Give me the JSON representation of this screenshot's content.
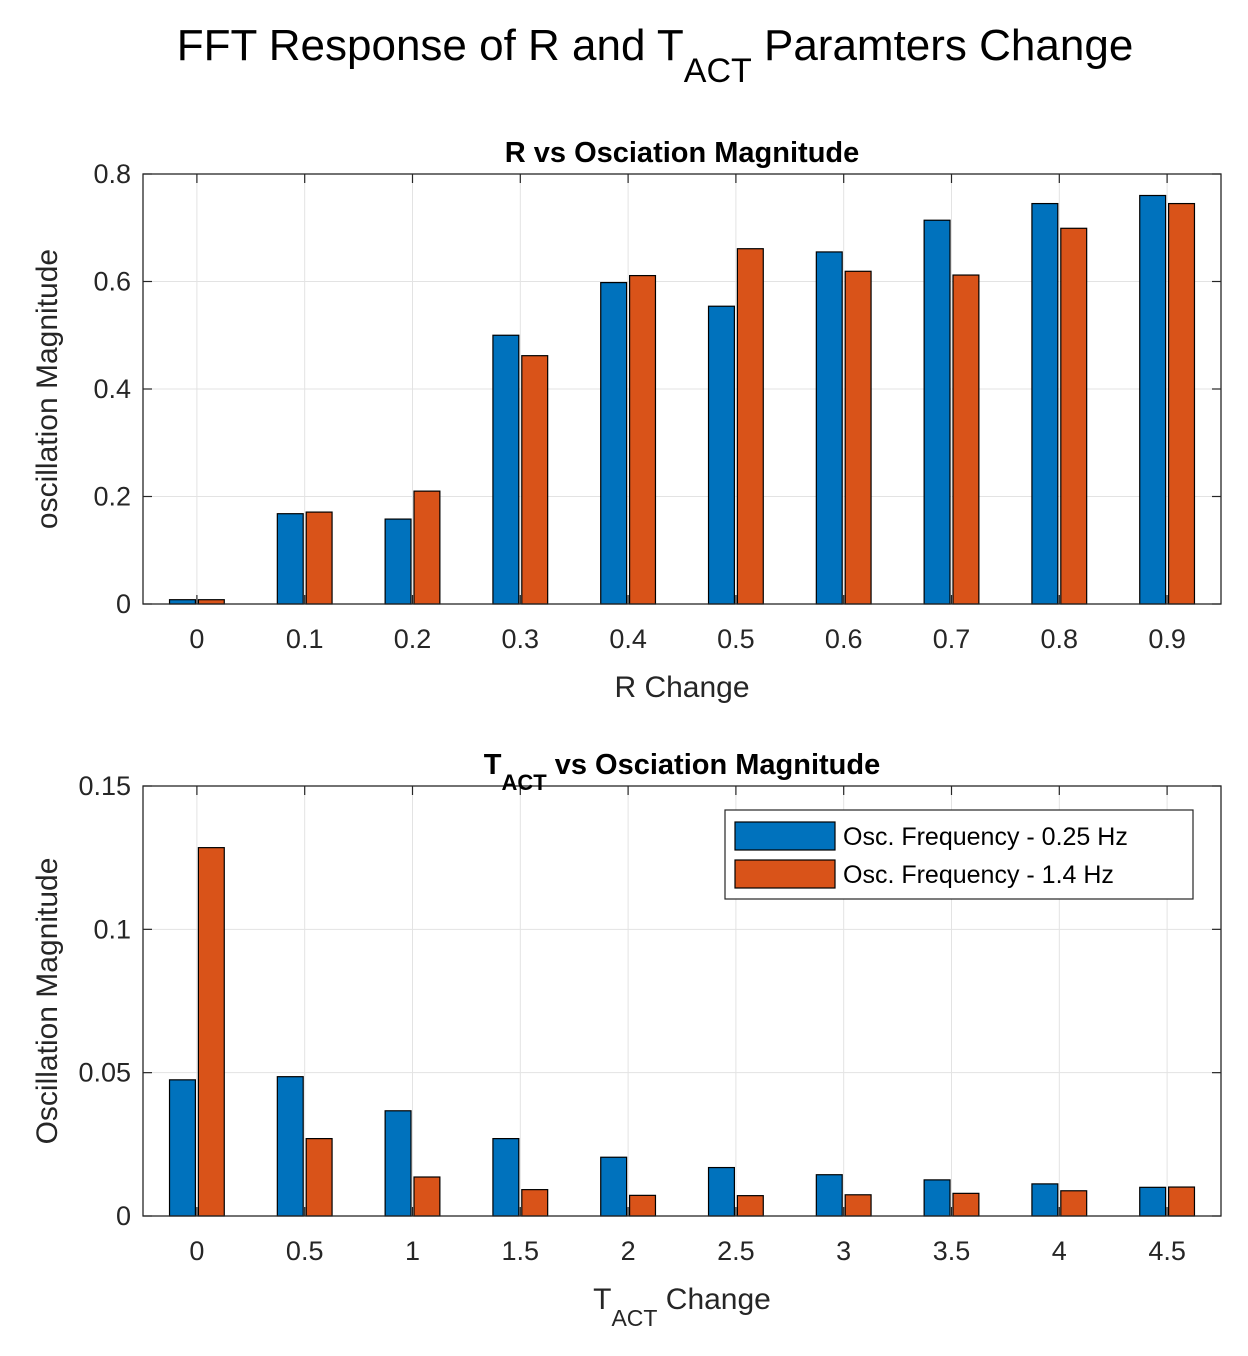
{
  "figure_title": {
    "prefix": "FFT Response of R and T",
    "subscript": "ACT",
    "suffix": " Paramters Change"
  },
  "colors": {
    "series_1": "#0072BD",
    "series_2": "#D95319",
    "grid": "#e3e3e3",
    "axis": "#262626"
  },
  "chart_data": [
    {
      "type": "bar",
      "title": {
        "prefix": "",
        "subscript": "",
        "suffix": "R vs Osciation Magnitude"
      },
      "xlabel": {
        "prefix": "R Change",
        "subscript": "",
        "suffix": ""
      },
      "ylabel": "oscillation Magnitude",
      "categories": [
        "0",
        "0.1",
        "0.2",
        "0.3",
        "0.4",
        "0.5",
        "0.6",
        "0.7",
        "0.8",
        "0.9"
      ],
      "yticks": [
        0,
        0.2,
        0.4,
        0.6,
        0.8
      ],
      "ytick_labels": [
        "0",
        "0.2",
        "0.4",
        "0.6",
        "0.8"
      ],
      "ylim": [
        0,
        0.8
      ],
      "grid": true,
      "series": [
        {
          "name": "Osc. Frequency - 0.25 Hz",
          "values": [
            0.008,
            0.168,
            0.158,
            0.5,
            0.598,
            0.554,
            0.655,
            0.714,
            0.745,
            0.76
          ]
        },
        {
          "name": "Osc. Frequency - 1.4 Hz",
          "values": [
            0.008,
            0.171,
            0.21,
            0.462,
            0.611,
            0.661,
            0.619,
            0.612,
            0.699,
            0.745
          ]
        }
      ],
      "legend": null
    },
    {
      "type": "bar",
      "title": {
        "prefix": "T",
        "subscript": "ACT",
        "suffix": " vs Osciation Magnitude"
      },
      "xlabel": {
        "prefix": "T",
        "subscript": "ACT",
        "suffix": " Change"
      },
      "ylabel": "Oscillation Magnitude",
      "categories": [
        "0",
        "0.5",
        "1",
        "1.5",
        "2",
        "2.5",
        "3",
        "3.5",
        "4",
        "4.5"
      ],
      "yticks": [
        0,
        0.05,
        0.1,
        0.15
      ],
      "ytick_labels": [
        "0",
        "0.05",
        "0.1",
        "0.15"
      ],
      "ylim": [
        0,
        0.15
      ],
      "grid": true,
      "series": [
        {
          "name": "Osc. Frequency - 0.25 Hz",
          "values": [
            0.0475,
            0.0486,
            0.0367,
            0.027,
            0.0205,
            0.0169,
            0.0144,
            0.0126,
            0.0112,
            0.01
          ]
        },
        {
          "name": "Osc. Frequency - 1.4 Hz",
          "values": [
            0.1285,
            0.027,
            0.0136,
            0.0092,
            0.0072,
            0.0071,
            0.0074,
            0.0079,
            0.0088,
            0.0101
          ]
        }
      ],
      "legend": "top-right"
    }
  ]
}
